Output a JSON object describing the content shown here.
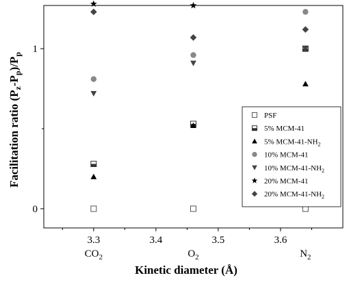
{
  "chart_data": {
    "type": "scatter",
    "x": [
      3.3,
      3.46,
      3.64
    ],
    "x_gas_labels": [
      {
        "base": "CO",
        "sub": "2"
      },
      {
        "base": "O",
        "sub": "2"
      },
      {
        "base": "N",
        "sub": "2"
      }
    ],
    "xlim": [
      3.22,
      3.7
    ],
    "ylim": [
      -0.12,
      1.27
    ],
    "xticks": [
      "3.3",
      "3.4",
      "3.5",
      "3.6"
    ],
    "xtick_values": [
      3.3,
      3.4,
      3.5,
      3.6
    ],
    "yticks": [
      "0",
      "1"
    ],
    "ytick_values": [
      0,
      1
    ],
    "xlabel": "Kinetic diameter (Å)",
    "ylabel": {
      "p1": "Facilitation ratio (P",
      "s1": "z",
      "p2": "-P",
      "s2": "p",
      "p3": ")/P",
      "s3": "p"
    },
    "legend_position": "lower-right",
    "series": [
      {
        "name": {
          "base": "PSF",
          "sub": ""
        },
        "marker": "open-square",
        "color": "#555555",
        "values": [
          0,
          0,
          0
        ]
      },
      {
        "name": {
          "base": "5% MCM-41",
          "sub": ""
        },
        "marker": "half-square",
        "color": "#333333",
        "values": [
          0.28,
          0.53,
          1.0
        ]
      },
      {
        "name": {
          "base": "5% MCM-41-NH",
          "sub": "2"
        },
        "marker": "triangle-up",
        "color": "#000000",
        "values": [
          0.2,
          0.52,
          0.78
        ]
      },
      {
        "name": {
          "base": "10% MCM-41",
          "sub": ""
        },
        "marker": "circle",
        "color": "#888888",
        "values": [
          0.81,
          0.96,
          1.23
        ]
      },
      {
        "name": {
          "base": "10% MCM-41-NH",
          "sub": "2"
        },
        "marker": "triangle-down",
        "color": "#444444",
        "values": [
          0.72,
          0.91,
          1.0
        ]
      },
      {
        "name": {
          "base": "20% MCM-41",
          "sub": ""
        },
        "marker": "star",
        "color": "#000000",
        "values": [
          1.28,
          1.27,
          null
        ]
      },
      {
        "name": {
          "base": "20% MCM-41-NH",
          "sub": "2"
        },
        "marker": "diamond",
        "color": "#444444",
        "values": [
          1.23,
          1.07,
          1.12
        ]
      }
    ]
  }
}
